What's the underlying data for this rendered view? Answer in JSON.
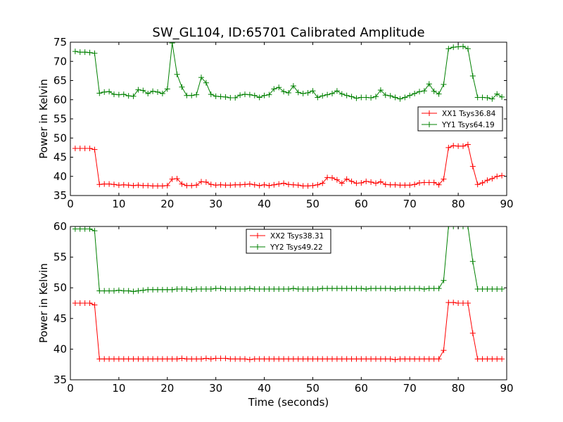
{
  "chart_data": {
    "type": "line",
    "title": "SW_GL104, ID:65701 Calibrated Amplitude",
    "colors": {
      "XX": "#ff0000",
      "YY": "#008000"
    },
    "subplots": [
      {
        "ylabel": "Power in Kelvin",
        "xlabel": "",
        "xlim": [
          0,
          90
        ],
        "ylim": [
          35,
          75
        ],
        "xticks": [
          0,
          10,
          20,
          30,
          40,
          50,
          60,
          70,
          80,
          90
        ],
        "yticks": [
          35,
          40,
          45,
          50,
          55,
          60,
          65,
          70,
          75
        ],
        "legend": "right",
        "series": [
          {
            "name": "XX1 Tsys36.84",
            "color": "#ff0000",
            "x": [
              1,
              2,
              3,
              4,
              5,
              6,
              7,
              8,
              9,
              10,
              11,
              12,
              13,
              14,
              15,
              16,
              17,
              18,
              19,
              20,
              21,
              22,
              23,
              24,
              25,
              26,
              27,
              28,
              29,
              30,
              31,
              32,
              33,
              34,
              35,
              36,
              37,
              38,
              39,
              40,
              41,
              42,
              43,
              44,
              45,
              46,
              47,
              48,
              49,
              50,
              51,
              52,
              53,
              54,
              55,
              56,
              57,
              58,
              59,
              60,
              61,
              62,
              63,
              64,
              65,
              66,
              67,
              68,
              69,
              70,
              71,
              72,
              73,
              74,
              75,
              76,
              77,
              78,
              79,
              80,
              81,
              82,
              83,
              84,
              85,
              86,
              87,
              88,
              89
            ],
            "y": [
              47.3,
              47.3,
              47.3,
              47.3,
              47.0,
              37.9,
              38.0,
              38.0,
              37.9,
              37.7,
              37.8,
              37.7,
              37.6,
              37.7,
              37.6,
              37.6,
              37.5,
              37.5,
              37.5,
              37.6,
              39.3,
              39.4,
              38.0,
              37.6,
              37.6,
              37.7,
              38.6,
              38.5,
              37.9,
              37.7,
              37.8,
              37.7,
              37.7,
              37.8,
              37.8,
              37.9,
              38.0,
              37.8,
              37.6,
              37.8,
              37.6,
              37.8,
              38.0,
              38.2,
              37.9,
              37.8,
              37.7,
              37.5,
              37.5,
              37.6,
              37.8,
              38.2,
              39.7,
              39.6,
              39.1,
              38.2,
              39.3,
              38.7,
              38.2,
              38.3,
              38.7,
              38.5,
              38.2,
              38.6,
              37.9,
              37.8,
              37.8,
              37.7,
              37.7,
              37.7,
              37.9,
              38.3,
              38.4,
              38.4,
              38.4,
              37.8,
              39.3,
              47.5,
              48.0,
              47.9,
              47.9,
              48.3,
              42.6,
              37.9,
              38.3,
              39.0,
              39.4,
              40.0,
              40.2
            ]
          },
          {
            "name": "YY1 Tsys64.19",
            "color": "#008000",
            "x": [
              1,
              2,
              3,
              4,
              5,
              6,
              7,
              8,
              9,
              10,
              11,
              12,
              13,
              14,
              15,
              16,
              17,
              18,
              19,
              20,
              21,
              22,
              23,
              24,
              25,
              26,
              27,
              28,
              29,
              30,
              31,
              32,
              33,
              34,
              35,
              36,
              37,
              38,
              39,
              40,
              41,
              42,
              43,
              44,
              45,
              46,
              47,
              48,
              49,
              50,
              51,
              52,
              53,
              54,
              55,
              56,
              57,
              58,
              59,
              60,
              61,
              62,
              63,
              64,
              65,
              66,
              67,
              68,
              69,
              70,
              71,
              72,
              73,
              74,
              75,
              76,
              77,
              78,
              79,
              80,
              81,
              82,
              83,
              84,
              85,
              86,
              87,
              88,
              89
            ],
            "y": [
              72.6,
              72.4,
              72.4,
              72.3,
              72.1,
              61.7,
              62.0,
              62.1,
              61.4,
              61.3,
              61.4,
              61.0,
              60.9,
              62.6,
              62.4,
              61.6,
              62.2,
              62.0,
              61.6,
              62.8,
              74.8,
              66.6,
              63.3,
              61.1,
              61.1,
              61.3,
              65.8,
              64.4,
              61.4,
              60.9,
              60.8,
              60.7,
              60.5,
              60.5,
              61.2,
              61.4,
              61.3,
              61.1,
              60.6,
              61.1,
              61.3,
              62.8,
              63.2,
              62.1,
              61.8,
              63.6,
              61.9,
              61.6,
              61.8,
              62.3,
              60.6,
              61.0,
              61.3,
              61.6,
              62.3,
              61.5,
              61.1,
              60.8,
              60.4,
              60.6,
              60.6,
              60.5,
              60.8,
              62.5,
              61.2,
              61.0,
              60.6,
              60.2,
              60.6,
              61.1,
              61.6,
              62.1,
              62.3,
              64.1,
              62.2,
              61.5,
              64.0,
              73.3,
              73.7,
              73.8,
              73.9,
              73.3,
              66.2,
              60.6,
              60.6,
              60.5,
              60.2,
              61.5,
              60.7
            ]
          }
        ]
      },
      {
        "ylabel": "Power in Kelvin",
        "xlabel": "Time (seconds)",
        "xlim": [
          0,
          90
        ],
        "ylim": [
          35,
          60
        ],
        "xticks": [
          0,
          10,
          20,
          30,
          40,
          50,
          60,
          70,
          80,
          90
        ],
        "yticks": [
          35,
          40,
          45,
          50,
          55,
          60
        ],
        "legend": "top-center",
        "series": [
          {
            "name": "XX2 Tsys38.31",
            "color": "#ff0000",
            "x": [
              1,
              2,
              3,
              4,
              5,
              6,
              7,
              8,
              9,
              10,
              11,
              12,
              13,
              14,
              15,
              16,
              17,
              18,
              19,
              20,
              21,
              22,
              23,
              24,
              25,
              26,
              27,
              28,
              29,
              30,
              31,
              32,
              33,
              34,
              35,
              36,
              37,
              38,
              39,
              40,
              41,
              42,
              43,
              44,
              45,
              46,
              47,
              48,
              49,
              50,
              51,
              52,
              53,
              54,
              55,
              56,
              57,
              58,
              59,
              60,
              61,
              62,
              63,
              64,
              65,
              66,
              67,
              68,
              69,
              70,
              71,
              72,
              73,
              74,
              75,
              76,
              77,
              78,
              79,
              80,
              81,
              82,
              83,
              84,
              85,
              86,
              87,
              88,
              89
            ],
            "y": [
              47.5,
              47.5,
              47.5,
              47.5,
              47.2,
              38.4,
              38.4,
              38.4,
              38.4,
              38.4,
              38.4,
              38.4,
              38.4,
              38.4,
              38.4,
              38.4,
              38.4,
              38.4,
              38.4,
              38.4,
              38.4,
              38.4,
              38.5,
              38.4,
              38.4,
              38.4,
              38.4,
              38.5,
              38.4,
              38.5,
              38.5,
              38.5,
              38.4,
              38.4,
              38.4,
              38.4,
              38.3,
              38.4,
              38.4,
              38.4,
              38.4,
              38.4,
              38.4,
              38.4,
              38.4,
              38.4,
              38.4,
              38.4,
              38.4,
              38.4,
              38.4,
              38.4,
              38.4,
              38.4,
              38.4,
              38.4,
              38.4,
              38.4,
              38.4,
              38.4,
              38.4,
              38.4,
              38.4,
              38.4,
              38.4,
              38.4,
              38.3,
              38.4,
              38.4,
              38.4,
              38.4,
              38.4,
              38.4,
              38.4,
              38.4,
              38.4,
              39.8,
              47.6,
              47.6,
              47.5,
              47.5,
              47.5,
              42.6,
              38.4,
              38.4,
              38.4,
              38.4,
              38.4,
              38.4
            ]
          },
          {
            "name": "YY2 Tsys49.22",
            "color": "#008000",
            "x": [
              1,
              2,
              3,
              4,
              5,
              6,
              7,
              8,
              9,
              10,
              11,
              12,
              13,
              14,
              15,
              16,
              17,
              18,
              19,
              20,
              21,
              22,
              23,
              24,
              25,
              26,
              27,
              28,
              29,
              30,
              31,
              32,
              33,
              34,
              35,
              36,
              37,
              38,
              39,
              40,
              41,
              42,
              43,
              44,
              45,
              46,
              47,
              48,
              49,
              50,
              51,
              52,
              53,
              54,
              55,
              56,
              57,
              58,
              59,
              60,
              61,
              62,
              63,
              64,
              65,
              66,
              67,
              68,
              69,
              70,
              71,
              72,
              73,
              74,
              75,
              76,
              77,
              78,
              79,
              80,
              81,
              82,
              83,
              84,
              85,
              86,
              87,
              88,
              89
            ],
            "y": [
              59.6,
              59.6,
              59.6,
              59.6,
              59.3,
              49.5,
              49.5,
              49.5,
              49.5,
              49.6,
              49.5,
              49.5,
              49.4,
              49.5,
              49.6,
              49.7,
              49.7,
              49.7,
              49.7,
              49.7,
              49.7,
              49.8,
              49.8,
              49.8,
              49.7,
              49.8,
              49.8,
              49.8,
              49.8,
              49.9,
              49.9,
              49.8,
              49.8,
              49.8,
              49.8,
              49.8,
              49.9,
              49.8,
              49.8,
              49.8,
              49.8,
              49.8,
              49.8,
              49.8,
              49.8,
              49.9,
              49.8,
              49.8,
              49.8,
              49.8,
              49.8,
              49.9,
              49.9,
              49.9,
              49.9,
              49.9,
              49.9,
              49.9,
              49.9,
              49.9,
              49.8,
              49.9,
              49.9,
              49.9,
              49.9,
              49.9,
              49.8,
              49.9,
              49.9,
              49.9,
              49.9,
              49.9,
              49.8,
              49.9,
              49.9,
              49.9,
              51.2,
              60.0,
              60.0,
              60.0,
              60.0,
              60.0,
              54.3,
              49.8,
              49.8,
              49.8,
              49.8,
              49.8,
              49.8
            ]
          }
        ]
      }
    ]
  }
}
